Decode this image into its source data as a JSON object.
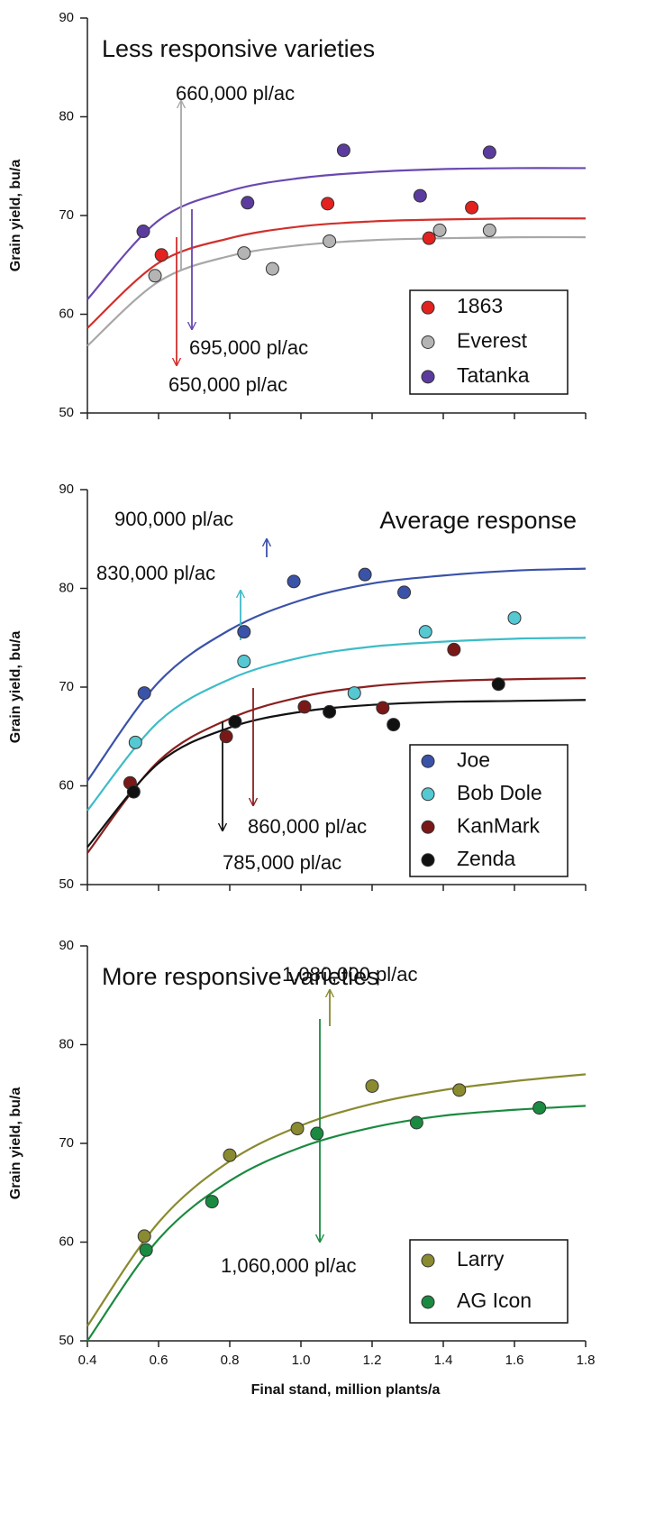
{
  "chart_data": [
    {
      "type": "scatter",
      "title": "Less responsive varieties",
      "title_corner": "upper left",
      "y_label": "Grain yield, bu/a",
      "xlim": [
        0.4,
        1.8
      ],
      "ylim": [
        50,
        90
      ],
      "yticks": [
        50,
        60,
        70,
        80,
        90
      ],
      "legend": "lower right",
      "series": [
        {
          "name": "1863",
          "color": "#e3221f",
          "x": [
            0.608,
            1.075,
            1.36,
            1.48
          ],
          "values": [
            66.0,
            71.2,
            67.7,
            70.8
          ]
        },
        {
          "name": "Everest",
          "color": "#b4b4b4",
          "x": [
            0.59,
            0.84,
            0.92,
            1.08,
            1.39,
            1.53
          ],
          "values": [
            63.9,
            66.2,
            64.6,
            67.4,
            68.5,
            68.5
          ]
        },
        {
          "name": "Tatanka",
          "color": "#5b3c9e",
          "x": [
            0.557,
            0.85,
            1.12,
            1.335,
            1.53
          ],
          "values": [
            68.4,
            71.3,
            76.6,
            72.0,
            76.4
          ]
        }
      ],
      "fits": [
        {
          "color": "#d1302c",
          "x": [
            0.4,
            0.6,
            0.8,
            1.0,
            1.2,
            1.4,
            1.6,
            1.8
          ],
          "values": [
            58.6,
            65.2,
            67.7,
            68.9,
            69.4,
            69.6,
            69.7,
            69.7
          ]
        },
        {
          "color": "#a8a8a8",
          "x": [
            0.4,
            0.6,
            0.8,
            1.0,
            1.2,
            1.4,
            1.6,
            1.8
          ],
          "values": [
            56.8,
            63.3,
            65.9,
            67.0,
            67.5,
            67.7,
            67.8,
            67.8
          ]
        },
        {
          "color": "#6a48b0",
          "x": [
            0.4,
            0.6,
            0.8,
            1.0,
            1.2,
            1.4,
            1.6,
            1.8
          ],
          "values": [
            61.5,
            69.5,
            72.5,
            73.8,
            74.4,
            74.7,
            74.8,
            74.8
          ]
        }
      ],
      "annotations": [
        {
          "text": "660,000 pl/ac",
          "color": "#a8a8a8"
        },
        {
          "text": "695,000 pl/ac",
          "color": "#6a48b0"
        },
        {
          "text": "650,000 pl/ac",
          "color": "#d1302c"
        }
      ]
    },
    {
      "type": "scatter",
      "title": "Average response",
      "title_corner": "upper right",
      "y_label": "Grain yield, bu/a",
      "xlim": [
        0.4,
        1.8
      ],
      "ylim": [
        50,
        90
      ],
      "yticks": [
        50,
        60,
        70,
        80,
        90
      ],
      "legend": "lower right",
      "series": [
        {
          "name": "Joe",
          "color": "#3a52a8",
          "x": [
            0.56,
            0.84,
            0.98,
            1.18,
            1.29
          ],
          "values": [
            69.4,
            75.6,
            80.7,
            81.4,
            79.6
          ]
        },
        {
          "name": "Bob Dole",
          "color": "#55c8d2",
          "x": [
            0.535,
            0.84,
            1.15,
            1.35,
            1.6
          ],
          "values": [
            64.4,
            72.6,
            69.4,
            75.6,
            77.0
          ]
        },
        {
          "name": "KanMark",
          "color": "#7a1818",
          "x": [
            0.52,
            0.79,
            1.01,
            1.23,
            1.43
          ],
          "values": [
            60.3,
            65.0,
            68.0,
            67.9,
            73.8
          ]
        },
        {
          "name": "Zenda",
          "color": "#111111",
          "x": [
            0.53,
            0.815,
            1.08,
            1.26,
            1.555
          ],
          "values": [
            59.4,
            66.5,
            67.5,
            66.2,
            70.3
          ]
        }
      ],
      "fits": [
        {
          "color": "#3a52a8",
          "x": [
            0.4,
            0.6,
            0.8,
            1.0,
            1.2,
            1.4,
            1.6,
            1.8
          ],
          "values": [
            60.5,
            70.5,
            75.8,
            78.8,
            80.5,
            81.3,
            81.8,
            82.0
          ]
        },
        {
          "color": "#3cbcc8",
          "x": [
            0.4,
            0.6,
            0.8,
            1.0,
            1.2,
            1.4,
            1.6,
            1.8
          ],
          "values": [
            57.5,
            66.5,
            70.8,
            73.0,
            74.1,
            74.6,
            74.9,
            75.0
          ]
        },
        {
          "color": "#8a2020",
          "x": [
            0.4,
            0.6,
            0.8,
            1.0,
            1.2,
            1.4,
            1.6,
            1.8
          ],
          "values": [
            53.2,
            62.5,
            66.8,
            69.0,
            70.1,
            70.6,
            70.8,
            70.9
          ]
        },
        {
          "color": "#111111",
          "x": [
            0.4,
            0.6,
            0.8,
            1.0,
            1.2,
            1.4,
            1.6,
            1.8
          ],
          "values": [
            53.8,
            62.3,
            65.9,
            67.5,
            68.2,
            68.5,
            68.6,
            68.7
          ]
        }
      ],
      "annotations": [
        {
          "text": "900,000 pl/ac",
          "color": "#3a52a8"
        },
        {
          "text": "830,000 pl/ac",
          "color": "#3cbcc8"
        },
        {
          "text": "860,000 pl/ac",
          "color": "#8a2020"
        },
        {
          "text": "785,000 pl/ac",
          "color": "#111111"
        }
      ]
    },
    {
      "type": "scatter",
      "title": "More responsive varieties",
      "title_corner": "upper left",
      "y_label": "Grain yield, bu/a",
      "x_label": "Final stand, million plants/a",
      "xlim": [
        0.4,
        1.8
      ],
      "ylim": [
        50,
        90
      ],
      "yticks": [
        50,
        60,
        70,
        80,
        90
      ],
      "xticks": [
        {
          "value": 0.4,
          "label": "0.4"
        },
        {
          "value": 0.6,
          "label": "0.6"
        },
        {
          "value": 0.8,
          "label": "0.8"
        },
        {
          "value": 1.0,
          "label": "1.0"
        },
        {
          "value": 1.2,
          "label": "1.2"
        },
        {
          "value": 1.4,
          "label": "1.4"
        },
        {
          "value": 1.6,
          "label": "1.6"
        },
        {
          "value": 1.8,
          "label": "1.8"
        }
      ],
      "legend": "lower right",
      "series": [
        {
          "name": "Larry",
          "color": "#8a8a30",
          "x": [
            0.56,
            0.8,
            0.99,
            1.2,
            1.445
          ],
          "values": [
            60.6,
            68.8,
            71.5,
            75.8,
            75.4
          ]
        },
        {
          "name": "AG Icon",
          "color": "#1a8a40",
          "x": [
            0.565,
            0.75,
            1.045,
            1.325,
            1.67
          ],
          "values": [
            59.2,
            64.1,
            71.0,
            72.1,
            73.6
          ]
        }
      ],
      "fits": [
        {
          "color": "#8a8a30",
          "x": [
            0.4,
            0.6,
            0.8,
            1.0,
            1.2,
            1.4,
            1.6,
            1.8
          ],
          "values": [
            51.5,
            62.0,
            68.2,
            71.8,
            74.0,
            75.4,
            76.3,
            77.0
          ]
        },
        {
          "color": "#1a8a40",
          "x": [
            0.4,
            0.6,
            0.8,
            1.0,
            1.2,
            1.4,
            1.6,
            1.8
          ],
          "values": [
            50.0,
            60.3,
            66.2,
            69.6,
            71.6,
            72.8,
            73.4,
            73.8
          ]
        }
      ],
      "annotations": [
        {
          "text": "1,080,000 pl/ac",
          "color": "#8a8a30"
        },
        {
          "text": "1,060,000 pl/ac",
          "color": "#1a8a40"
        }
      ]
    }
  ]
}
